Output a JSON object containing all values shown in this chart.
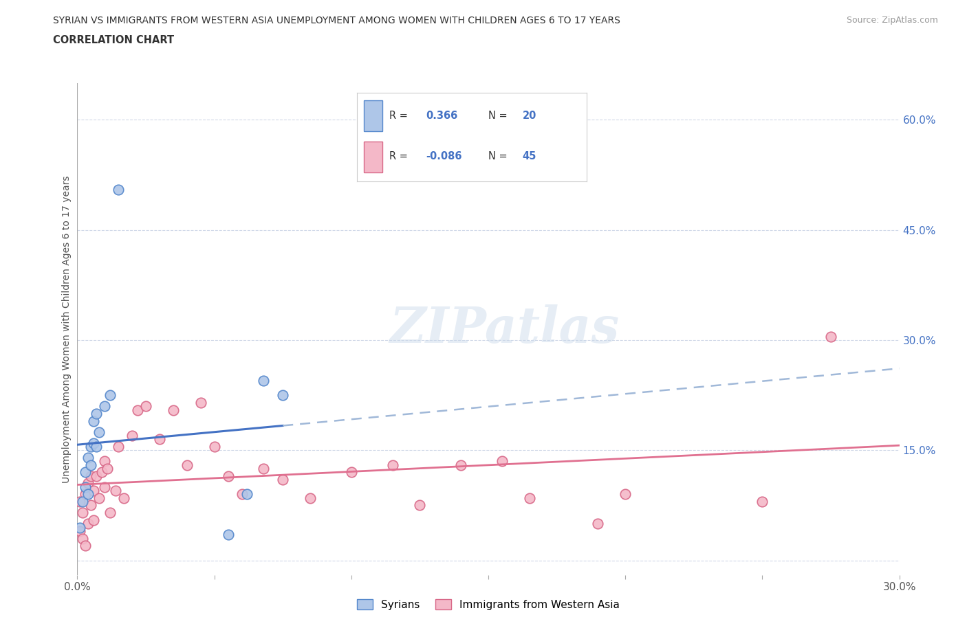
{
  "title_line1": "SYRIAN VS IMMIGRANTS FROM WESTERN ASIA UNEMPLOYMENT AMONG WOMEN WITH CHILDREN AGES 6 TO 17 YEARS",
  "title_line2": "CORRELATION CHART",
  "source": "Source: ZipAtlas.com",
  "watermark": "ZIPatlas",
  "ylabel": "Unemployment Among Women with Children Ages 6 to 17 years",
  "xlim": [
    0.0,
    0.3
  ],
  "ylim": [
    -0.02,
    0.65
  ],
  "xtick_positions": [
    0.0,
    0.05,
    0.1,
    0.15,
    0.2,
    0.25,
    0.3
  ],
  "xtick_labels": [
    "0.0%",
    "",
    "",
    "",
    "",
    "",
    "30.0%"
  ],
  "ytick_positions": [
    0.0,
    0.15,
    0.3,
    0.45,
    0.6
  ],
  "ytick_labels": [
    "",
    "15.0%",
    "30.0%",
    "45.0%",
    "60.0%"
  ],
  "grid_color": "#d0d8e8",
  "bg_color": "#ffffff",
  "syrian_fill": "#aec6e8",
  "syrian_edge": "#5588cc",
  "immigrant_fill": "#f4b8c8",
  "immigrant_edge": "#d86888",
  "syrian_line_color": "#4472c4",
  "immigrant_line_color": "#e07090",
  "dashed_line_color": "#a0b8d8",
  "text_color": "#4472c4",
  "label_color": "#555555",
  "source_color": "#999999",
  "legend_border_color": "#cccccc",
  "syrians_x": [
    0.001,
    0.002,
    0.003,
    0.003,
    0.004,
    0.004,
    0.005,
    0.005,
    0.006,
    0.006,
    0.007,
    0.007,
    0.008,
    0.01,
    0.012,
    0.015,
    0.055,
    0.062,
    0.068,
    0.075
  ],
  "syrians_y": [
    0.045,
    0.08,
    0.1,
    0.12,
    0.09,
    0.14,
    0.13,
    0.155,
    0.16,
    0.19,
    0.155,
    0.2,
    0.175,
    0.21,
    0.225,
    0.505,
    0.035,
    0.09,
    0.245,
    0.225
  ],
  "immigrants_x": [
    0.001,
    0.001,
    0.002,
    0.002,
    0.003,
    0.003,
    0.004,
    0.004,
    0.005,
    0.005,
    0.006,
    0.006,
    0.007,
    0.008,
    0.009,
    0.01,
    0.01,
    0.011,
    0.012,
    0.014,
    0.015,
    0.017,
    0.02,
    0.022,
    0.025,
    0.03,
    0.035,
    0.04,
    0.045,
    0.05,
    0.055,
    0.06,
    0.068,
    0.075,
    0.085,
    0.1,
    0.115,
    0.125,
    0.14,
    0.155,
    0.165,
    0.19,
    0.2,
    0.25,
    0.275
  ],
  "immigrants_y": [
    0.04,
    0.08,
    0.03,
    0.065,
    0.02,
    0.09,
    0.05,
    0.105,
    0.075,
    0.115,
    0.095,
    0.055,
    0.115,
    0.085,
    0.12,
    0.135,
    0.1,
    0.125,
    0.065,
    0.095,
    0.155,
    0.085,
    0.17,
    0.205,
    0.21,
    0.165,
    0.205,
    0.13,
    0.215,
    0.155,
    0.115,
    0.09,
    0.125,
    0.11,
    0.085,
    0.12,
    0.13,
    0.075,
    0.13,
    0.135,
    0.085,
    0.05,
    0.09,
    0.08,
    0.305
  ]
}
